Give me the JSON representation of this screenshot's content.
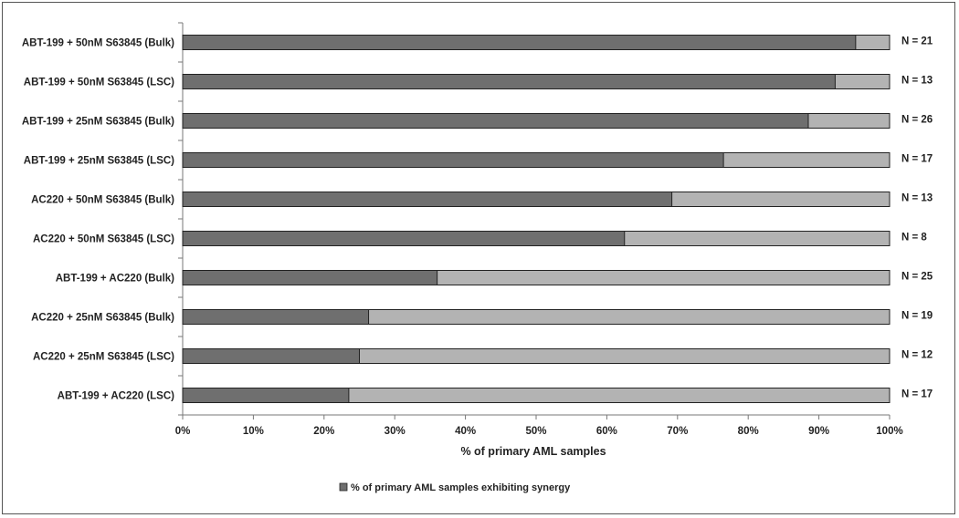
{
  "chart_data": {
    "type": "bar",
    "orientation": "horizontal",
    "stacked": true,
    "categories": [
      "ABT-199 + 50nM S63845 (Bulk)",
      "ABT-199 + 50nM S63845 (LSC)",
      "ABT-199 + 25nM S63845 (Bulk)",
      "ABT-199 + 25nM S63845 (LSC)",
      "AC220 + 50nM S63845 (Bulk)",
      "AC220 + 50nM S63845 (LSC)",
      "ABT-199 + AC220 (Bulk)",
      "AC220 + 25nM S63845 (Bulk)",
      "AC220 +  25nM S63845 (LSC)",
      "ABT-199 + AC220 (LSC)"
    ],
    "series": [
      {
        "name": "% of primary AML samples exhibiting synergy",
        "color": "#6f6f6f",
        "values": [
          95.2,
          92.3,
          88.5,
          76.5,
          69.2,
          62.5,
          36.0,
          26.3,
          25.0,
          23.5
        ]
      }
    ],
    "remainder_color": "#b3b3b3",
    "n_labels": [
      "N = 21",
      "N = 13",
      "N = 26",
      "N = 17",
      "N = 13",
      "N = 8",
      "N = 25",
      "N = 19",
      "N = 12",
      "N = 17"
    ],
    "x_ticks": [
      "0%",
      "10%",
      "20%",
      "30%",
      "40%",
      "50%",
      "60%",
      "70%",
      "80%",
      "90%",
      "100%"
    ],
    "xlim": [
      0,
      100
    ],
    "xlabel": "% of primary AML samples",
    "legend": {
      "position": "bottom",
      "label": "% of primary AML samples exhibiting synergy"
    }
  }
}
